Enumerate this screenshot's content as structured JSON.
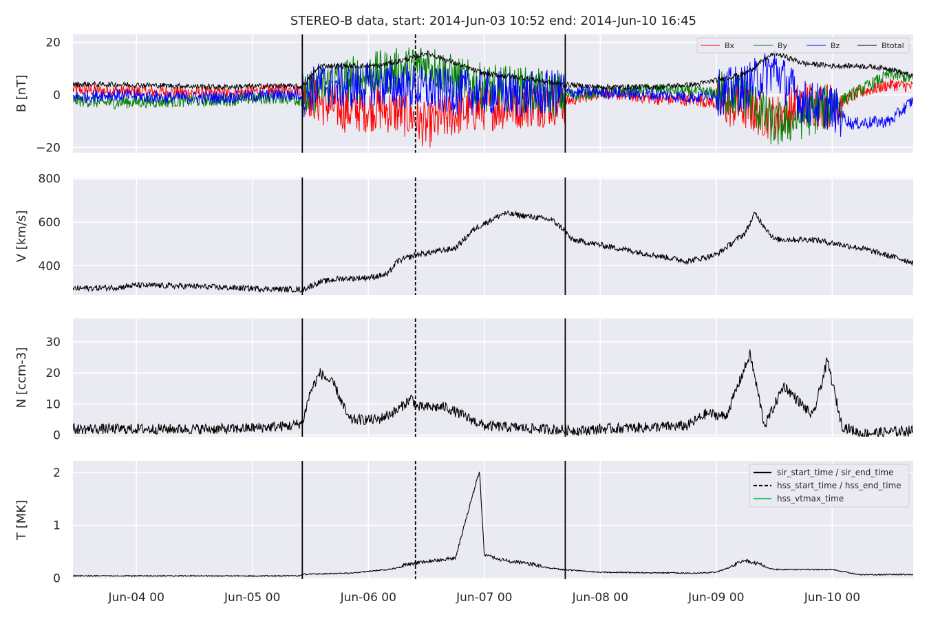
{
  "chart_data": {
    "title": "STEREO-B data, start: 2014-Jun-03 10:52  end: 2014-Jun-10 16:45",
    "x_start": "2014-06-03 10:52",
    "x_end": "2014-06-10 16:45",
    "x_ticks": [
      {
        "t": "2014-06-04 00:00",
        "label": "Jun-04 00"
      },
      {
        "t": "2014-06-05 00:00",
        "label": "Jun-05 00"
      },
      {
        "t": "2014-06-06 00:00",
        "label": "Jun-06 00"
      },
      {
        "t": "2014-06-07 00:00",
        "label": "Jun-07 00"
      },
      {
        "t": "2014-06-08 00:00",
        "label": "Jun-08 00"
      },
      {
        "t": "2014-06-09 00:00",
        "label": "Jun-09 00"
      },
      {
        "t": "2014-06-10 00:00",
        "label": "Jun-10 00"
      }
    ],
    "events": {
      "sir_start_time": "2014-06-05 10:20",
      "hss_start_time": "2014-06-06 09:45",
      "sir_end_time": "2014-06-07 16:45"
    },
    "legend_lines": {
      "sir": "sir_start_time / sir_end_time",
      "hss": "hss_start_time / hss_end_time",
      "vtmax": "hss_vtmax_time"
    },
    "panels": [
      {
        "id": "B",
        "type": "line",
        "ylabel": "B [nT]",
        "ylim": [
          -22,
          23
        ],
        "yticks": [
          {
            "v": -20,
            "label": "−20"
          },
          {
            "v": 0,
            "label": "0"
          },
          {
            "v": 20,
            "label": "20"
          }
        ],
        "legend": "top-right",
        "series": [
          {
            "name": "Bx",
            "color": "#ff0000",
            "data": [
              [
                "2014-06-03 10:52",
                2
              ],
              [
                "2014-06-03 18:00",
                1.5
              ],
              [
                "2014-06-04 06:00",
                1
              ],
              [
                "2014-06-04 18:00",
                0.5
              ],
              [
                "2014-06-05 06:00",
                2
              ],
              [
                "2014-06-05 10:20",
                2
              ],
              [
                "2014-06-05 14:00",
                -3
              ],
              [
                "2014-06-05 20:00",
                -6
              ],
              [
                "2014-06-06 02:00",
                -5
              ],
              [
                "2014-06-06 09:00",
                -8
              ],
              [
                "2014-06-06 12:00",
                -12
              ],
              [
                "2014-06-06 18:00",
                -7
              ],
              [
                "2014-06-07 00:00",
                -5
              ],
              [
                "2014-06-07 08:00",
                -4
              ],
              [
                "2014-06-07 16:00",
                -3
              ],
              [
                "2014-06-08 00:00",
                1
              ],
              [
                "2014-06-08 12:00",
                -1.5
              ],
              [
                "2014-06-08 20:00",
                -2
              ],
              [
                "2014-06-09 06:00",
                -5
              ],
              [
                "2014-06-09 12:00",
                -9
              ],
              [
                "2014-06-09 18:00",
                -3
              ],
              [
                "2014-06-10 00:00",
                -4
              ],
              [
                "2014-06-10 06:00",
                1
              ],
              [
                "2014-06-10 12:00",
                4
              ],
              [
                "2014-06-10 16:45",
                3
              ]
            ]
          },
          {
            "name": "By",
            "color": "#008000",
            "data": [
              [
                "2014-06-03 10:52",
                -2
              ],
              [
                "2014-06-03 18:00",
                -3
              ],
              [
                "2014-06-04 06:00",
                -2.5
              ],
              [
                "2014-06-04 18:00",
                -2
              ],
              [
                "2014-06-05 06:00",
                -1
              ],
              [
                "2014-06-05 10:20",
                -2
              ],
              [
                "2014-06-05 14:00",
                3
              ],
              [
                "2014-06-05 20:00",
                6
              ],
              [
                "2014-06-06 02:00",
                8
              ],
              [
                "2014-06-06 09:00",
                10
              ],
              [
                "2014-06-06 12:00",
                12
              ],
              [
                "2014-06-06 18:00",
                6
              ],
              [
                "2014-06-07 00:00",
                3
              ],
              [
                "2014-06-07 08:00",
                2
              ],
              [
                "2014-06-07 16:00",
                0
              ],
              [
                "2014-06-08 00:00",
                1
              ],
              [
                "2014-06-08 12:00",
                2
              ],
              [
                "2014-06-08 20:00",
                1
              ],
              [
                "2014-06-09 06:00",
                0
              ],
              [
                "2014-06-09 12:00",
                -12
              ],
              [
                "2014-06-09 18:00",
                -8
              ],
              [
                "2014-06-10 00:00",
                -4
              ],
              [
                "2014-06-10 06:00",
                2
              ],
              [
                "2014-06-10 12:00",
                8
              ],
              [
                "2014-06-10 16:45",
                6
              ]
            ]
          },
          {
            "name": "Bz",
            "color": "#0000ff",
            "data": [
              [
                "2014-06-03 10:52",
                -1
              ],
              [
                "2014-06-03 18:00",
                0
              ],
              [
                "2014-06-04 06:00",
                -1
              ],
              [
                "2014-06-04 18:00",
                -1
              ],
              [
                "2014-06-05 06:00",
                0
              ],
              [
                "2014-06-05 10:20",
                0
              ],
              [
                "2014-06-05 14:00",
                4
              ],
              [
                "2014-06-05 20:00",
                3
              ],
              [
                "2014-06-06 02:00",
                4
              ],
              [
                "2014-06-06 09:00",
                3
              ],
              [
                "2014-06-06 12:00",
                2
              ],
              [
                "2014-06-06 18:00",
                1
              ],
              [
                "2014-06-07 00:00",
                1
              ],
              [
                "2014-06-07 08:00",
                0
              ],
              [
                "2014-06-07 16:00",
                1
              ],
              [
                "2014-06-08 00:00",
                1
              ],
              [
                "2014-06-08 12:00",
                0
              ],
              [
                "2014-06-08 20:00",
                -1
              ],
              [
                "2014-06-09 06:00",
                3
              ],
              [
                "2014-06-09 12:00",
                10
              ],
              [
                "2014-06-09 18:00",
                -3
              ],
              [
                "2014-06-10 00:00",
                -5
              ],
              [
                "2014-06-10 04:00",
                -11
              ],
              [
                "2014-06-10 12:00",
                -10
              ],
              [
                "2014-06-10 16:45",
                -2
              ]
            ]
          },
          {
            "name": "Btotal",
            "color": "#000000",
            "data": [
              [
                "2014-06-03 10:52",
                4
              ],
              [
                "2014-06-03 18:00",
                4
              ],
              [
                "2014-06-04 06:00",
                3.5
              ],
              [
                "2014-06-04 18:00",
                3
              ],
              [
                "2014-06-05 06:00",
                3.5
              ],
              [
                "2014-06-05 10:20",
                3
              ],
              [
                "2014-06-05 14:00",
                11
              ],
              [
                "2014-06-05 20:00",
                11
              ],
              [
                "2014-06-06 02:00",
                11
              ],
              [
                "2014-06-06 09:00",
                14
              ],
              [
                "2014-06-06 12:00",
                16
              ],
              [
                "2014-06-06 18:00",
                12
              ],
              [
                "2014-06-07 00:00",
                8
              ],
              [
                "2014-06-07 08:00",
                6.5
              ],
              [
                "2014-06-07 16:00",
                4
              ],
              [
                "2014-06-08 00:00",
                3
              ],
              [
                "2014-06-08 12:00",
                3
              ],
              [
                "2014-06-08 20:00",
                4
              ],
              [
                "2014-06-09 06:00",
                8
              ],
              [
                "2014-06-09 12:00",
                16
              ],
              [
                "2014-06-09 18:00",
                12
              ],
              [
                "2014-06-10 00:00",
                11
              ],
              [
                "2014-06-10 06:00",
                11
              ],
              [
                "2014-06-10 12:00",
                10
              ],
              [
                "2014-06-10 16:45",
                7
              ]
            ]
          }
        ]
      },
      {
        "id": "V",
        "type": "line",
        "ylabel": "V [km/s]",
        "ylim": [
          265,
          805
        ],
        "yticks": [
          {
            "v": 400,
            "label": "400"
          },
          {
            "v": 600,
            "label": "600"
          },
          {
            "v": 800,
            "label": "800"
          }
        ],
        "series": [
          {
            "name": "V",
            "color": "#000000",
            "data": [
              [
                "2014-06-03 10:52",
                295
              ],
              [
                "2014-06-03 20:00",
                300
              ],
              [
                "2014-06-04 00:00",
                310
              ],
              [
                "2014-06-04 12:00",
                305
              ],
              [
                "2014-06-04 20:00",
                298
              ],
              [
                "2014-06-05 06:00",
                292
              ],
              [
                "2014-06-05 10:20",
                290
              ],
              [
                "2014-06-05 14:00",
                325
              ],
              [
                "2014-06-05 18:00",
                340
              ],
              [
                "2014-06-06 00:00",
                345
              ],
              [
                "2014-06-06 04:00",
                360
              ],
              [
                "2014-06-06 06:00",
                420
              ],
              [
                "2014-06-06 10:00",
                450
              ],
              [
                "2014-06-06 18:00",
                480
              ],
              [
                "2014-06-06 22:00",
                570
              ],
              [
                "2014-06-07 04:00",
                640
              ],
              [
                "2014-06-07 08:00",
                630
              ],
              [
                "2014-06-07 14:00",
                610
              ],
              [
                "2014-06-07 16:45",
                560
              ],
              [
                "2014-06-07 18:00",
                520
              ],
              [
                "2014-06-08 06:00",
                470
              ],
              [
                "2014-06-08 18:00",
                420
              ],
              [
                "2014-06-09 00:00",
                450
              ],
              [
                "2014-06-09 06:00",
                550
              ],
              [
                "2014-06-09 08:00",
                640
              ],
              [
                "2014-06-09 12:00",
                520
              ],
              [
                "2014-06-09 20:00",
                520
              ],
              [
                "2014-06-10 06:00",
                480
              ],
              [
                "2014-06-10 16:45",
                415
              ]
            ]
          }
        ]
      },
      {
        "id": "N",
        "type": "line",
        "ylabel": "N [ccm-3]",
        "ylim": [
          -0.5,
          37.5
        ],
        "yticks": [
          {
            "v": 0,
            "label": "0"
          },
          {
            "v": 10,
            "label": "10"
          },
          {
            "v": 20,
            "label": "20"
          },
          {
            "v": 30,
            "label": "30"
          }
        ],
        "series": [
          {
            "name": "N",
            "color": "#000000",
            "data": [
              [
                "2014-06-03 10:52",
                2
              ],
              [
                "2014-06-04 00:00",
                2
              ],
              [
                "2014-06-04 20:00",
                2
              ],
              [
                "2014-06-05 08:00",
                3
              ],
              [
                "2014-06-05 10:20",
                4
              ],
              [
                "2014-06-05 12:00",
                14
              ],
              [
                "2014-06-05 14:00",
                20
              ],
              [
                "2014-06-05 17:00",
                16
              ],
              [
                "2014-06-05 20:00",
                5
              ],
              [
                "2014-06-06 02:00",
                5
              ],
              [
                "2014-06-06 06:00",
                8
              ],
              [
                "2014-06-06 09:00",
                12
              ],
              [
                "2014-06-06 10:00",
                9
              ],
              [
                "2014-06-06 16:00",
                9
              ],
              [
                "2014-06-06 20:00",
                6
              ],
              [
                "2014-06-07 00:00",
                3
              ],
              [
                "2014-06-07 12:00",
                2
              ],
              [
                "2014-06-07 20:00",
                1.5
              ],
              [
                "2014-06-08 00:00",
                2
              ],
              [
                "2014-06-08 18:00",
                3
              ],
              [
                "2014-06-08 22:00",
                7
              ],
              [
                "2014-06-09 02:00",
                6
              ],
              [
                "2014-06-09 04:00",
                14
              ],
              [
                "2014-06-09 07:00",
                26
              ],
              [
                "2014-06-09 10:00",
                3
              ],
              [
                "2014-06-09 14:00",
                16
              ],
              [
                "2014-06-09 20:00",
                6
              ],
              [
                "2014-06-09 23:00",
                24
              ],
              [
                "2014-06-10 02:00",
                3
              ],
              [
                "2014-06-10 06:00",
                0.5
              ],
              [
                "2014-06-10 16:45",
                1.5
              ]
            ]
          }
        ]
      },
      {
        "id": "T",
        "type": "line",
        "ylabel": "T [MK]",
        "ylim": [
          -0.02,
          2.22
        ],
        "yticks": [
          {
            "v": 0,
            "label": "0"
          },
          {
            "v": 1,
            "label": "1"
          },
          {
            "v": 2,
            "label": "2"
          }
        ],
        "legend": "top-right",
        "series": [
          {
            "name": "T",
            "color": "#000000",
            "data": [
              [
                "2014-06-03 10:52",
                0.03
              ],
              [
                "2014-06-04 00:00",
                0.03
              ],
              [
                "2014-06-05 10:00",
                0.03
              ],
              [
                "2014-06-05 10:20",
                0.06
              ],
              [
                "2014-06-05 20:00",
                0.08
              ],
              [
                "2014-06-06 04:00",
                0.15
              ],
              [
                "2014-06-06 10:00",
                0.25
              ],
              [
                "2014-06-06 18:00",
                0.35
              ],
              [
                "2014-06-06 23:00",
                2.0
              ],
              [
                "2014-06-07 00:00",
                0.4
              ],
              [
                "2014-06-07 04:00",
                0.3
              ],
              [
                "2014-06-07 16:00",
                0.15
              ],
              [
                "2014-06-08 00:00",
                0.1
              ],
              [
                "2014-06-08 20:00",
                0.08
              ],
              [
                "2014-06-09 00:00",
                0.1
              ],
              [
                "2014-06-09 06:00",
                0.3
              ],
              [
                "2014-06-09 12:00",
                0.15
              ],
              [
                "2014-06-10 00:00",
                0.15
              ],
              [
                "2014-06-10 06:00",
                0.05
              ],
              [
                "2014-06-10 16:45",
                0.06
              ]
            ]
          }
        ]
      }
    ]
  }
}
